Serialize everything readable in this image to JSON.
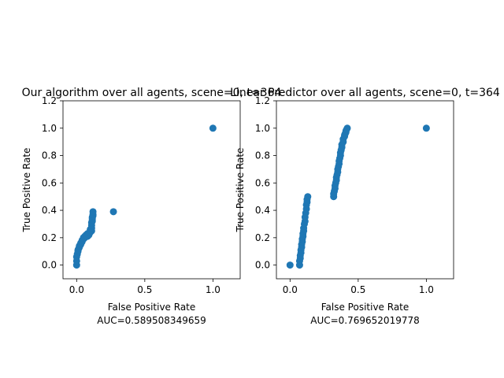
{
  "chart_data": [
    {
      "type": "scatter",
      "title": "Our algorithm over all agents, scene=0,  t=364",
      "xlabel": "False Positive Rate",
      "ylabel": "True Positive Rate",
      "auc_label": "AUC=0.589508349659",
      "xlim": [
        -0.1,
        1.2
      ],
      "ylim": [
        -0.1,
        1.2
      ],
      "xticks": [
        "0.0",
        "0.5",
        "1.0"
      ],
      "yticks": [
        "0.0",
        "0.2",
        "0.4",
        "0.6",
        "0.8",
        "1.0",
        "1.2"
      ],
      "grid": false,
      "color": "#1f77b4",
      "series": [
        {
          "x": [
            0.0,
            0.0,
            0.0,
            0.005,
            0.01,
            0.01,
            0.015,
            0.02,
            0.02,
            0.03,
            0.03,
            0.04,
            0.04,
            0.05,
            0.05,
            0.06,
            0.06,
            0.07,
            0.08,
            0.08,
            0.09,
            0.1,
            0.1,
            0.11,
            0.11,
            0.11,
            0.11,
            0.115,
            0.115,
            0.115,
            0.115,
            0.12,
            0.12,
            0.12,
            0.27,
            1.0
          ],
          "y": [
            0.0,
            0.03,
            0.06,
            0.08,
            0.1,
            0.11,
            0.12,
            0.13,
            0.14,
            0.15,
            0.16,
            0.17,
            0.18,
            0.19,
            0.2,
            0.21,
            0.2,
            0.22,
            0.21,
            0.23,
            0.22,
            0.24,
            0.26,
            0.25,
            0.27,
            0.29,
            0.31,
            0.32,
            0.33,
            0.34,
            0.35,
            0.36,
            0.37,
            0.39,
            0.39,
            1.0
          ]
        }
      ]
    },
    {
      "type": "scatter",
      "title": "Linear Predictor over all agents, scene=0,  t=364",
      "xlabel": "False Positive Rate",
      "ylabel": "True Positive Rate",
      "auc_label": "AUC=0.769652019778",
      "xlim": [
        -0.1,
        1.2
      ],
      "ylim": [
        -0.1,
        1.2
      ],
      "xticks": [
        "0.0",
        "0.5",
        "1.0"
      ],
      "yticks": [
        "0.0",
        "0.2",
        "0.4",
        "0.6",
        "0.8",
        "1.0",
        "1.2"
      ],
      "grid": false,
      "color": "#1f77b4",
      "series": [
        {
          "x": [
            0.0,
            0.07,
            0.07,
            0.075,
            0.075,
            0.08,
            0.08,
            0.085,
            0.085,
            0.09,
            0.09,
            0.095,
            0.095,
            0.1,
            0.1,
            0.105,
            0.11,
            0.11,
            0.115,
            0.12,
            0.12,
            0.125,
            0.125,
            0.13,
            0.32,
            0.32,
            0.325,
            0.33,
            0.33,
            0.335,
            0.34,
            0.34,
            0.345,
            0.35,
            0.35,
            0.355,
            0.36,
            0.36,
            0.365,
            0.37,
            0.37,
            0.375,
            0.38,
            0.38,
            0.39,
            0.39,
            0.4,
            0.4,
            0.405,
            0.41,
            0.41,
            0.415,
            0.42,
            1.0
          ],
          "y": [
            0.0,
            0.0,
            0.03,
            0.05,
            0.07,
            0.09,
            0.11,
            0.13,
            0.15,
            0.17,
            0.19,
            0.21,
            0.23,
            0.25,
            0.27,
            0.3,
            0.32,
            0.35,
            0.38,
            0.41,
            0.44,
            0.46,
            0.48,
            0.5,
            0.5,
            0.52,
            0.54,
            0.56,
            0.58,
            0.6,
            0.62,
            0.64,
            0.66,
            0.68,
            0.7,
            0.72,
            0.74,
            0.76,
            0.78,
            0.8,
            0.82,
            0.84,
            0.86,
            0.88,
            0.9,
            0.92,
            0.94,
            0.95,
            0.96,
            0.97,
            0.98,
            0.99,
            1.0,
            1.0
          ]
        }
      ]
    }
  ]
}
